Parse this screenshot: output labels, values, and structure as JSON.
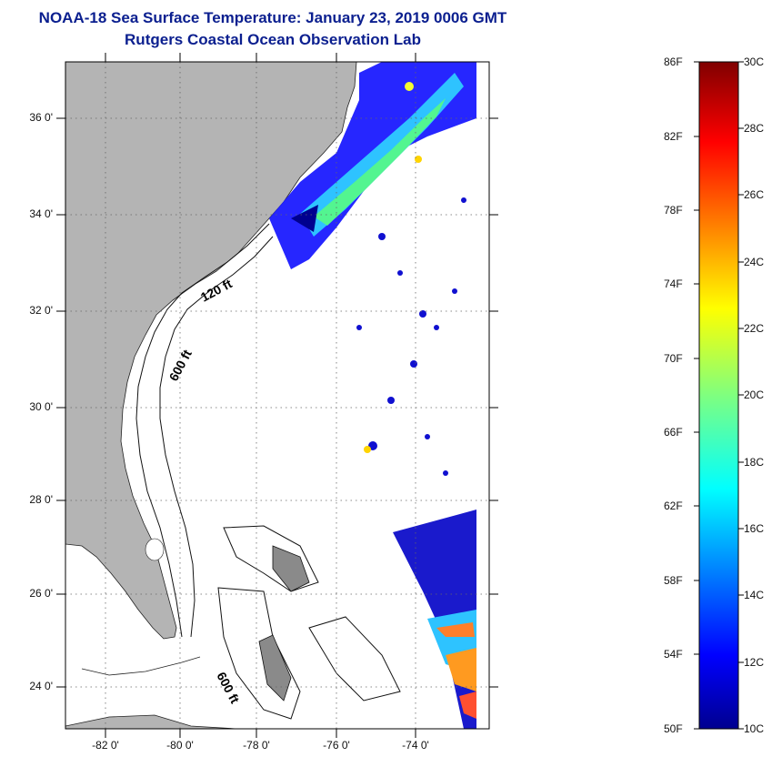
{
  "title": "NOAA-18 Sea Surface Temperature:  January 23, 2019 0006 GMT",
  "subtitle": "Rutgers Coastal Ocean Observation Lab",
  "map": {
    "lat_ticks": [
      "36 0'",
      "34 0'",
      "32 0'",
      "30 0'",
      "28 0'",
      "26 0'",
      "24 0'"
    ],
    "lon_ticks": [
      "-82 0'",
      "-80 0'",
      "-78 0'",
      "-76 0'",
      "-74 0'"
    ],
    "grid": true,
    "land_color": "#b4b4b4",
    "ocean_color": "#ffffff",
    "contour_labels": [
      "120 ft",
      "600 ft",
      "600 ft"
    ]
  },
  "colorbar": {
    "fahrenheit": [
      "86F",
      "82F",
      "78F",
      "74F",
      "70F",
      "66F",
      "62F",
      "58F",
      "54F",
      "50F"
    ],
    "celsius": [
      "30C",
      "28C",
      "26C",
      "24C",
      "22C",
      "20C",
      "18C",
      "16C",
      "14C",
      "12C",
      "10C"
    ],
    "colormap": "jet",
    "min_c": 10,
    "max_c": 30
  }
}
